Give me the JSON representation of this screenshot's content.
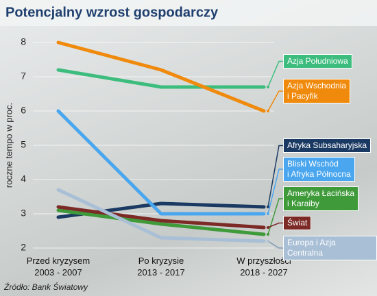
{
  "chart_data": {
    "type": "line",
    "title": "Potencjalny wzrost gospodarczy",
    "y_label": "roczne tempo w proc.",
    "categories": [
      "Przed kryzysem\n2003 - 2007",
      "Po kryzysie\n2013 - 2017",
      "W przyszłości\n2018 - 2027"
    ],
    "series": [
      {
        "name": "Azja Południowa",
        "color": "#3dbd7d",
        "values": [
          7.2,
          6.7,
          6.7
        ]
      },
      {
        "name": "Azja Wschodnia\ni Pacyfik",
        "color": "#f08a0c",
        "values": [
          8.0,
          7.2,
          6.0
        ]
      },
      {
        "name": "Afryka Subsaharyjska",
        "color": "#1b3a63",
        "values": [
          2.9,
          3.3,
          3.2
        ]
      },
      {
        "name": "Bliski Wschód\ni Afryka Północna",
        "color": "#4aa6ee",
        "values": [
          6.0,
          3.0,
          3.0
        ]
      },
      {
        "name": "Ameryka Łacińska\ni Karaiby",
        "color": "#3f9a3a",
        "values": [
          3.1,
          2.7,
          2.4
        ]
      },
      {
        "name": "Świat",
        "color": "#7c2a26",
        "values": [
          3.2,
          2.8,
          2.6
        ]
      },
      {
        "name": "Europa i Azja Centralna",
        "color": "#a9bfd6",
        "values": [
          3.7,
          2.3,
          2.2
        ]
      }
    ],
    "ylim": [
      2,
      8
    ],
    "yticks": [
      2,
      3,
      4,
      5,
      6,
      7,
      8
    ],
    "grid": true,
    "source": "Źródło: Bank Światowy"
  }
}
